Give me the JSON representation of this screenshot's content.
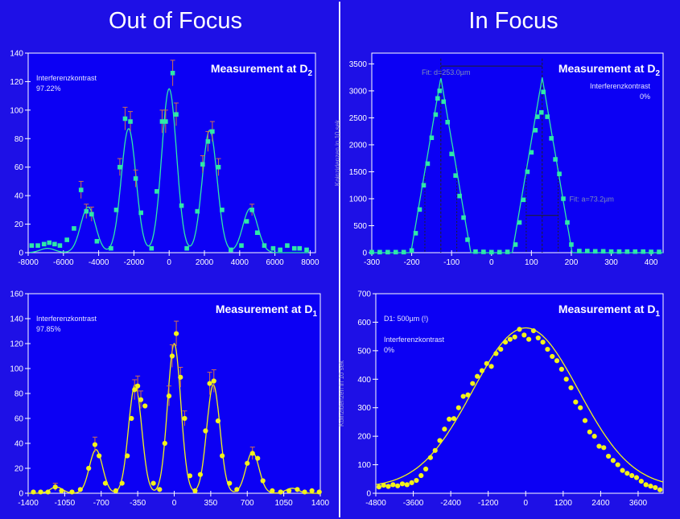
{
  "headings": {
    "left": "Out of Focus",
    "right": "In Focus"
  },
  "colors": {
    "background": "#1e10e6",
    "plot_area": "#0c00f4",
    "green_series": "#2ee8a8",
    "yellow_series": "#f2f21a",
    "axis_text": "#ffffff",
    "annotation_text": "#e6e6ff"
  },
  "chart_data": [
    {
      "id": "oof_d2",
      "type": "scatter",
      "title": "Measurement at D",
      "title_sub": "2",
      "annotation_lines": [
        "Interferenzkontrast",
        "97.22%"
      ],
      "annotation2_lines": [],
      "xlabel": "",
      "ylabel": "",
      "xlim": [
        -8000,
        8300
      ],
      "ylim": [
        0,
        140
      ],
      "xticks": [
        -8000,
        -6000,
        -4000,
        -2000,
        0,
        2000,
        4000,
        6000,
        8000
      ],
      "yticks": [
        0,
        20,
        40,
        60,
        80,
        100,
        120,
        140
      ],
      "marker": "square",
      "color": "#2ee8a8",
      "fit": {
        "kind": "fringes",
        "centers": [
          -4600,
          -2300,
          0,
          2300,
          4600
        ],
        "amps": [
          32,
          87,
          115,
          86,
          31
        ],
        "sigma": 420,
        "ghost": {
          "center": -6900,
          "amp": 3,
          "sigma": 420
        },
        "xrange": [
          -7900,
          7900
        ]
      },
      "points": [
        {
          "x": -7800,
          "y": 5
        },
        {
          "x": -7450,
          "y": 5
        },
        {
          "x": -7100,
          "y": 6
        },
        {
          "x": -6800,
          "y": 7
        },
        {
          "x": -6500,
          "y": 6
        },
        {
          "x": -6200,
          "y": 5
        },
        {
          "x": -5800,
          "y": 9
        },
        {
          "x": -5400,
          "y": 17
        },
        {
          "x": -5000,
          "y": 44,
          "e": 6
        },
        {
          "x": -4700,
          "y": 29,
          "e": 5
        },
        {
          "x": -4400,
          "y": 27,
          "e": 5
        },
        {
          "x": -4100,
          "y": 8
        },
        {
          "x": -3300,
          "y": 3
        },
        {
          "x": -3000,
          "y": 30
        },
        {
          "x": -2800,
          "y": 60,
          "e": 6
        },
        {
          "x": -2500,
          "y": 94,
          "e": 8
        },
        {
          "x": -2200,
          "y": 92,
          "e": 7
        },
        {
          "x": -1900,
          "y": 52,
          "e": 6
        },
        {
          "x": -1600,
          "y": 28
        },
        {
          "x": -1000,
          "y": 3
        },
        {
          "x": -700,
          "y": 43
        },
        {
          "x": -400,
          "y": 92,
          "e": 8
        },
        {
          "x": -200,
          "y": 92,
          "e": 8
        },
        {
          "x": 200,
          "y": 126,
          "e": 9
        },
        {
          "x": 400,
          "y": 97,
          "e": 8
        },
        {
          "x": 700,
          "y": 33
        },
        {
          "x": 1000,
          "y": 3
        },
        {
          "x": 1600,
          "y": 29
        },
        {
          "x": 1900,
          "y": 62,
          "e": 6
        },
        {
          "x": 2200,
          "y": 78,
          "e": 7
        },
        {
          "x": 2450,
          "y": 85,
          "e": 7
        },
        {
          "x": 2800,
          "y": 60,
          "e": 6
        },
        {
          "x": 3000,
          "y": 30
        },
        {
          "x": 3500,
          "y": 2
        },
        {
          "x": 4100,
          "y": 5
        },
        {
          "x": 4400,
          "y": 22
        },
        {
          "x": 4700,
          "y": 30,
          "e": 4
        },
        {
          "x": 5000,
          "y": 14
        },
        {
          "x": 5400,
          "y": 5
        },
        {
          "x": 5900,
          "y": 3
        },
        {
          "x": 6300,
          "y": 2
        },
        {
          "x": 6700,
          "y": 5
        },
        {
          "x": 7100,
          "y": 3
        },
        {
          "x": 7400,
          "y": 3
        },
        {
          "x": 7800,
          "y": 2
        }
      ]
    },
    {
      "id": "if_d2",
      "type": "scatter",
      "title": "Measurement at D",
      "title_sub": "2",
      "annotation_lines": [
        "Interferenzkontrast",
        "0%"
      ],
      "annotation2_lines": [
        "Fit: d=253.0µm",
        "Fit: a=73.2µm"
      ],
      "xlabel": "",
      "ylabel": "Koinzidenzen in 10 sek",
      "xlim": [
        -300,
        430
      ],
      "ylim": [
        0,
        3700
      ],
      "xticks": [
        -300,
        -200,
        -100,
        0,
        100,
        200,
        300,
        400
      ],
      "yticks": [
        0,
        500,
        1000,
        1500,
        2000,
        2500,
        3000,
        3500
      ],
      "marker": "square",
      "color": "#2ee8a8",
      "fit": {
        "kind": "triangles",
        "peaks": [
          [
            -127,
            3250
          ],
          [
            127,
            3250
          ]
        ],
        "halfwidth": 75,
        "xrange": [
          -300,
          430
        ]
      },
      "points": [
        {
          "x": -300,
          "y": 10
        },
        {
          "x": -280,
          "y": 10
        },
        {
          "x": -260,
          "y": 10
        },
        {
          "x": -240,
          "y": 10
        },
        {
          "x": -220,
          "y": 10
        },
        {
          "x": -200,
          "y": 40
        },
        {
          "x": -190,
          "y": 360
        },
        {
          "x": -180,
          "y": 800
        },
        {
          "x": -170,
          "y": 1250
        },
        {
          "x": -160,
          "y": 1650
        },
        {
          "x": -150,
          "y": 2130
        },
        {
          "x": -140,
          "y": 2560
        },
        {
          "x": -135,
          "y": 2860
        },
        {
          "x": -130,
          "y": 3000
        },
        {
          "x": -120,
          "y": 2800
        },
        {
          "x": -110,
          "y": 2420
        },
        {
          "x": -100,
          "y": 1830
        },
        {
          "x": -90,
          "y": 1430
        },
        {
          "x": -80,
          "y": 1050
        },
        {
          "x": -70,
          "y": 650
        },
        {
          "x": -60,
          "y": 240
        },
        {
          "x": -40,
          "y": 20
        },
        {
          "x": -20,
          "y": 15
        },
        {
          "x": 0,
          "y": 10
        },
        {
          "x": 20,
          "y": 10
        },
        {
          "x": 40,
          "y": 15
        },
        {
          "x": 60,
          "y": 150
        },
        {
          "x": 70,
          "y": 560
        },
        {
          "x": 80,
          "y": 980
        },
        {
          "x": 90,
          "y": 1500
        },
        {
          "x": 100,
          "y": 1860
        },
        {
          "x": 110,
          "y": 2270
        },
        {
          "x": 115,
          "y": 2520
        },
        {
          "x": 125,
          "y": 2600
        },
        {
          "x": 130,
          "y": 2980
        },
        {
          "x": 140,
          "y": 2520
        },
        {
          "x": 150,
          "y": 2120
        },
        {
          "x": 160,
          "y": 1730
        },
        {
          "x": 170,
          "y": 1460
        },
        {
          "x": 180,
          "y": 1000
        },
        {
          "x": 190,
          "y": 560
        },
        {
          "x": 200,
          "y": 150
        },
        {
          "x": 220,
          "y": 30
        },
        {
          "x": 240,
          "y": 30
        },
        {
          "x": 260,
          "y": 25
        },
        {
          "x": 280,
          "y": 25
        },
        {
          "x": 300,
          "y": 20
        },
        {
          "x": 320,
          "y": 20
        },
        {
          "x": 340,
          "y": 20
        },
        {
          "x": 360,
          "y": 20
        },
        {
          "x": 380,
          "y": 20
        },
        {
          "x": 400,
          "y": 15
        },
        {
          "x": 420,
          "y": 15
        }
      ]
    },
    {
      "id": "oof_d1",
      "type": "scatter",
      "title": "Measurement at D",
      "title_sub": "1",
      "annotation_lines": [
        "Interferenzkontrast",
        "97.85%"
      ],
      "annotation2_lines": [],
      "xlabel": "",
      "ylabel": "",
      "xlim": [
        -1400,
        1400
      ],
      "ylim": [
        0,
        160
      ],
      "xticks": [
        -1400,
        -1050,
        -700,
        -350,
        0,
        350,
        700,
        1050,
        1400
      ],
      "yticks": [
        0,
        20,
        40,
        60,
        80,
        100,
        120,
        140,
        160
      ],
      "marker": "circle",
      "color": "#f2f21a",
      "fit": {
        "kind": "fringes",
        "centers": [
          -750,
          -375,
          0,
          375,
          750
        ],
        "amps": [
          35,
          87,
          120,
          87,
          33
        ],
        "sigma": 63,
        "ghost": {
          "center": -1130,
          "amp": 5,
          "sigma": 60
        },
        "ghost2": {
          "center": 1130,
          "amp": 4,
          "sigma": 60
        },
        "xrange": [
          -1400,
          1400
        ]
      },
      "points": [
        {
          "x": -1350,
          "y": 1
        },
        {
          "x": -1280,
          "y": 1
        },
        {
          "x": -1210,
          "y": 1
        },
        {
          "x": -1140,
          "y": 5,
          "e": 3
        },
        {
          "x": -1080,
          "y": 2
        },
        {
          "x": -980,
          "y": 1
        },
        {
          "x": -900,
          "y": 3
        },
        {
          "x": -820,
          "y": 20
        },
        {
          "x": -760,
          "y": 39,
          "e": 6
        },
        {
          "x": -720,
          "y": 30
        },
        {
          "x": -660,
          "y": 8
        },
        {
          "x": -560,
          "y": 2
        },
        {
          "x": -500,
          "y": 8
        },
        {
          "x": -450,
          "y": 30
        },
        {
          "x": -410,
          "y": 60
        },
        {
          "x": -380,
          "y": 83,
          "e": 8
        },
        {
          "x": -350,
          "y": 86,
          "e": 8
        },
        {
          "x": -320,
          "y": 75,
          "e": 7
        },
        {
          "x": -280,
          "y": 70
        },
        {
          "x": -200,
          "y": 8
        },
        {
          "x": -140,
          "y": 3
        },
        {
          "x": -90,
          "y": 40
        },
        {
          "x": -50,
          "y": 78,
          "e": 8
        },
        {
          "x": -20,
          "y": 110,
          "e": 9
        },
        {
          "x": 20,
          "y": 128,
          "e": 10
        },
        {
          "x": 60,
          "y": 93,
          "e": 8
        },
        {
          "x": 100,
          "y": 60,
          "e": 6
        },
        {
          "x": 150,
          "y": 14
        },
        {
          "x": 200,
          "y": 2
        },
        {
          "x": 250,
          "y": 15
        },
        {
          "x": 300,
          "y": 50
        },
        {
          "x": 340,
          "y": 88,
          "e": 9
        },
        {
          "x": 380,
          "y": 90,
          "e": 9
        },
        {
          "x": 420,
          "y": 58
        },
        {
          "x": 460,
          "y": 30
        },
        {
          "x": 530,
          "y": 8
        },
        {
          "x": 600,
          "y": 3
        },
        {
          "x": 700,
          "y": 24
        },
        {
          "x": 750,
          "y": 32,
          "e": 5
        },
        {
          "x": 800,
          "y": 28
        },
        {
          "x": 850,
          "y": 10
        },
        {
          "x": 940,
          "y": 2
        },
        {
          "x": 1020,
          "y": 1
        },
        {
          "x": 1100,
          "y": 2
        },
        {
          "x": 1180,
          "y": 3
        },
        {
          "x": 1250,
          "y": 1
        },
        {
          "x": 1320,
          "y": 2
        },
        {
          "x": 1390,
          "y": 1
        }
      ]
    },
    {
      "id": "if_d1",
      "type": "scatter",
      "title": "Measurement at D",
      "title_sub": "1",
      "annotation_lines": [
        "D1: 500µm (!)",
        "",
        "Interferenzkontrast",
        "0%"
      ],
      "annotation2_lines": [],
      "xlabel": "",
      "ylabel": "Koinzidenzen in 10 sek",
      "xlim": [
        -4800,
        4400
      ],
      "ylim": [
        0,
        700
      ],
      "xticks": [
        -4800,
        -3600,
        -2400,
        -1200,
        0,
        1200,
        2400,
        3600
      ],
      "yticks": [
        0,
        100,
        200,
        300,
        400,
        500,
        600,
        700
      ],
      "marker": "circle",
      "color": "#f2f21a",
      "fit": {
        "kind": "envelope",
        "center": 0,
        "amp": 560,
        "sigma": 1700,
        "base": 20,
        "xrange": [
          -4800,
          4400
        ]
      },
      "points": [
        {
          "x": -4700,
          "y": 22
        },
        {
          "x": -4550,
          "y": 28
        },
        {
          "x": -4400,
          "y": 24
        },
        {
          "x": -4250,
          "y": 30
        },
        {
          "x": -4100,
          "y": 26
        },
        {
          "x": -3950,
          "y": 33
        },
        {
          "x": -3800,
          "y": 30
        },
        {
          "x": -3650,
          "y": 37
        },
        {
          "x": -3500,
          "y": 45
        },
        {
          "x": -3350,
          "y": 62
        },
        {
          "x": -3200,
          "y": 85
        },
        {
          "x": -3050,
          "y": 125
        },
        {
          "x": -2900,
          "y": 150
        },
        {
          "x": -2750,
          "y": 185
        },
        {
          "x": -2600,
          "y": 225
        },
        {
          "x": -2450,
          "y": 260
        },
        {
          "x": -2300,
          "y": 262
        },
        {
          "x": -2150,
          "y": 300
        },
        {
          "x": -2000,
          "y": 340
        },
        {
          "x": -1850,
          "y": 345
        },
        {
          "x": -1700,
          "y": 385
        },
        {
          "x": -1550,
          "y": 410
        },
        {
          "x": -1400,
          "y": 430
        },
        {
          "x": -1250,
          "y": 455
        },
        {
          "x": -1100,
          "y": 445
        },
        {
          "x": -950,
          "y": 490
        },
        {
          "x": -800,
          "y": 505
        },
        {
          "x": -650,
          "y": 530
        },
        {
          "x": -500,
          "y": 540
        },
        {
          "x": -350,
          "y": 548
        },
        {
          "x": -200,
          "y": 575
        },
        {
          "x": -50,
          "y": 555
        },
        {
          "x": 100,
          "y": 540
        },
        {
          "x": 250,
          "y": 570
        },
        {
          "x": 400,
          "y": 545
        },
        {
          "x": 550,
          "y": 530
        },
        {
          "x": 700,
          "y": 505
        },
        {
          "x": 850,
          "y": 480
        },
        {
          "x": 1000,
          "y": 465
        },
        {
          "x": 1150,
          "y": 435
        },
        {
          "x": 1300,
          "y": 400
        },
        {
          "x": 1450,
          "y": 370
        },
        {
          "x": 1600,
          "y": 320
        },
        {
          "x": 1750,
          "y": 300
        },
        {
          "x": 1900,
          "y": 255
        },
        {
          "x": 2050,
          "y": 215
        },
        {
          "x": 2200,
          "y": 200
        },
        {
          "x": 2350,
          "y": 165
        },
        {
          "x": 2500,
          "y": 160
        },
        {
          "x": 2650,
          "y": 130
        },
        {
          "x": 2800,
          "y": 115
        },
        {
          "x": 2950,
          "y": 100
        },
        {
          "x": 3100,
          "y": 80
        },
        {
          "x": 3250,
          "y": 70
        },
        {
          "x": 3400,
          "y": 62
        },
        {
          "x": 3550,
          "y": 55
        },
        {
          "x": 3700,
          "y": 42
        },
        {
          "x": 3850,
          "y": 30
        },
        {
          "x": 4000,
          "y": 25
        },
        {
          "x": 4150,
          "y": 20
        },
        {
          "x": 4300,
          "y": 12
        }
      ]
    }
  ]
}
